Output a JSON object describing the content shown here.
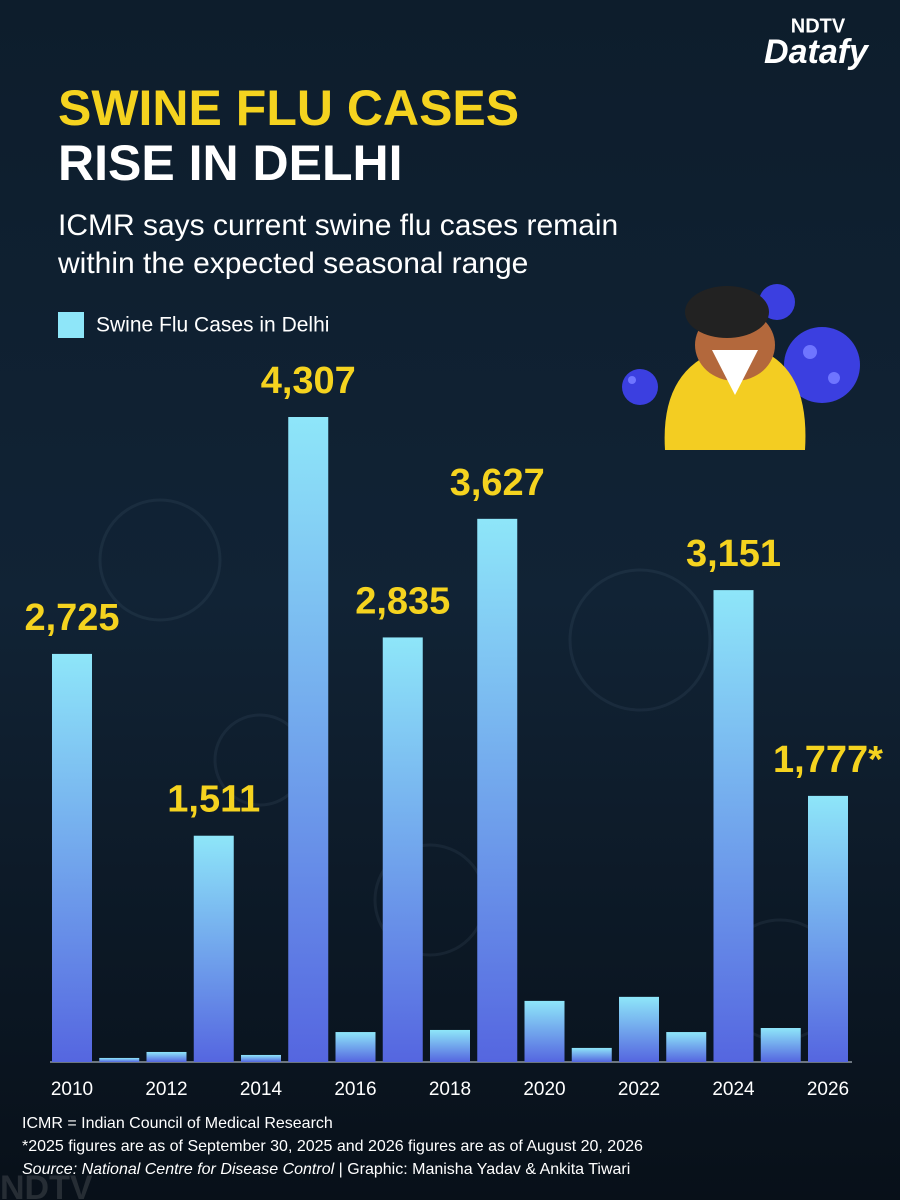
{
  "brand": {
    "top": "NDTV",
    "name": "Datafy"
  },
  "watermark": "NDTV",
  "chart_data": {
    "type": "bar",
    "title": "SWINE FLU CASES",
    "title_line2": "RISE IN DELHI",
    "subtitle": [
      "ICMR says current swine flu cases remain",
      "within the expected seasonal range"
    ],
    "categories": [
      "2010",
      null,
      "2012",
      null,
      "2014",
      null,
      "2016",
      null,
      "2018",
      null,
      "2020",
      null,
      "2022",
      null,
      "2024",
      null,
      "2026"
    ],
    "series": [
      {
        "name": "Swine Flu Cases in Delhi",
        "color": "#8ee6f9",
        "values": [
          2725,
          27,
          67,
          1511,
          47,
          4307,
          200,
          2835,
          214,
          3627,
          408,
          94,
          435,
          200,
          3151,
          227,
          1777
        ],
        "value_labels": [
          "2,725",
          null,
          null,
          "1,511",
          null,
          "4,307",
          null,
          "2,835",
          null,
          "3,627",
          null,
          null,
          null,
          null,
          "3,151",
          null,
          "1,777*"
        ]
      }
    ],
    "label_color": "#f5d31f",
    "notes": [
      "ICMR = Indian Council of Medical Research",
      "*2025 figures are as of September 30, 2025 and 2026 figures are as of August 20, 2026"
    ],
    "source": {
      "label": "Source: National Centre for Disease Control",
      "credit": " | Graphic: Manisha Yadav & Ankita Tiwari"
    }
  }
}
